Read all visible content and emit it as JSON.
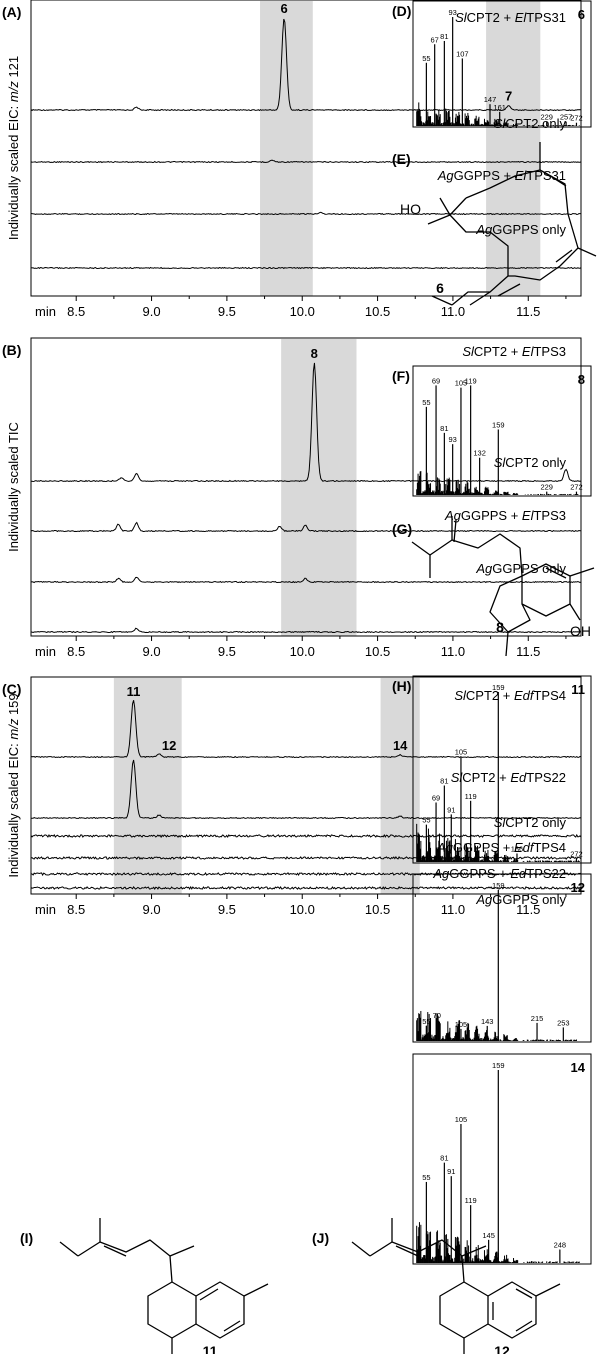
{
  "chart_data": [
    {
      "type": "line",
      "panel_label": "(A)",
      "ylabel": "Individually scaled EIC: m/z 121",
      "x_unit_label": "min",
      "xlim": [
        8.2,
        11.85
      ],
      "x_ticks": [
        "8.5",
        "9.0",
        "9.5",
        "10.0",
        "10.5",
        "11.0",
        "11.5"
      ],
      "highlight_ranges": [
        [
          9.72,
          10.07
        ],
        [
          11.22,
          11.58
        ]
      ],
      "peak_labels": [
        {
          "label": "6",
          "x": 9.88,
          "trace": 0
        },
        {
          "label": "7",
          "x": 11.37,
          "trace": 0
        }
      ],
      "series": [
        {
          "name": "SlCPT2 + ElTPS31",
          "peaks": [
            {
              "x": 9.88,
              "y": 1.0
            },
            {
              "x": 11.37,
              "y": 0.05
            },
            {
              "x": 8.9,
              "y": 0.03
            }
          ]
        },
        {
          "name": "SlCPT2 only",
          "peaks": [
            {
              "x": 9.8,
              "y": 0.02
            }
          ]
        },
        {
          "name": "AgGGPPS + ElTPS31",
          "peaks": [
            {
              "x": 10.12,
              "y": 0.02
            }
          ]
        },
        {
          "name": "AgGGPPS only",
          "peaks": []
        }
      ]
    },
    {
      "type": "line",
      "panel_label": "(B)",
      "ylabel": "Individually scaled TIC",
      "x_unit_label": "min",
      "xlim": [
        8.2,
        11.85
      ],
      "x_ticks": [
        "8.5",
        "9.0",
        "9.5",
        "10.0",
        "10.5",
        "11.0",
        "11.5"
      ],
      "highlight_ranges": [
        [
          9.86,
          10.36
        ]
      ],
      "peak_labels": [
        {
          "label": "8",
          "x": 10.08,
          "trace": 0
        }
      ],
      "series": [
        {
          "name": "SlCPT2 + ElTPS3",
          "peaks": [
            {
              "x": 10.08,
              "y": 1.0
            },
            {
              "x": 8.9,
              "y": 0.06
            },
            {
              "x": 8.8,
              "y": 0.03
            },
            {
              "x": 11.75,
              "y": 0.1
            }
          ]
        },
        {
          "name": "SlCPT2 only",
          "peaks": [
            {
              "x": 8.78,
              "y": 0.06
            },
            {
              "x": 8.9,
              "y": 0.07
            },
            {
              "x": 9.85,
              "y": 0.04
            },
            {
              "x": 10.02,
              "y": 0.05
            }
          ]
        },
        {
          "name": "AgGGPPS + ElTPS3",
          "peaks": [
            {
              "x": 8.78,
              "y": 0.03
            },
            {
              "x": 8.9,
              "y": 0.04
            },
            {
              "x": 10.02,
              "y": 0.03
            }
          ]
        },
        {
          "name": "AgGGPPS only",
          "peaks": [
            {
              "x": 8.9,
              "y": 0.03
            }
          ]
        }
      ]
    },
    {
      "type": "line",
      "panel_label": "(C)",
      "ylabel": "Individually scaled EIC: m/z 159",
      "x_unit_label": "min",
      "xlim": [
        8.2,
        11.85
      ],
      "x_ticks": [
        "8.5",
        "9.0",
        "9.5",
        "10.0",
        "10.5",
        "11.0",
        "11.5"
      ],
      "highlight_ranges": [
        [
          8.75,
          9.2
        ],
        [
          10.52,
          10.78
        ]
      ],
      "peak_labels": [
        {
          "label": "11",
          "x": 8.88,
          "trace": 0
        },
        {
          "label": "12",
          "x": 9.05,
          "trace": 0
        },
        {
          "label": "14",
          "x": 10.65,
          "trace": 0
        }
      ],
      "series": [
        {
          "name": "SlCPT2 + EdfTPS4",
          "peaks": [
            {
              "x": 8.88,
              "y": 1.0
            },
            {
              "x": 9.05,
              "y": 0.06
            },
            {
              "x": 10.65,
              "y": 0.04
            }
          ]
        },
        {
          "name": "SlCPT2 + EdTPS22",
          "peaks": [
            {
              "x": 8.88,
              "y": 1.0
            },
            {
              "x": 9.05,
              "y": 0.05
            },
            {
              "x": 10.65,
              "y": 0.03
            }
          ]
        },
        {
          "name": "SlCPT2 only",
          "peaks": []
        },
        {
          "name": "AgGGPPS + EdfTPS4",
          "peaks": []
        },
        {
          "name": "AgGGPPS + EdTPS22",
          "peaks": []
        },
        {
          "name": "AgGGPPS only",
          "peaks": []
        }
      ]
    },
    {
      "type": "bar",
      "panel_label": "(D)",
      "compound": "6",
      "xlim": [
        40,
        280
      ],
      "labeled_peaks": [
        {
          "mz": 55,
          "label": "55",
          "y": 0.58
        },
        {
          "mz": 67,
          "label": "67",
          "y": 0.75
        },
        {
          "mz": 81,
          "label": "81",
          "y": 0.78
        },
        {
          "mz": 93,
          "label": "93",
          "y": 1.0
        },
        {
          "mz": 107,
          "label": "107",
          "y": 0.62
        },
        {
          "mz": 147,
          "label": "147",
          "y": 0.2
        },
        {
          "mz": 161,
          "label": "161",
          "y": 0.13
        },
        {
          "mz": 229,
          "label": "229",
          "y": 0.04
        },
        {
          "mz": 257,
          "label": "257",
          "y": 0.04
        },
        {
          "mz": 272,
          "label": "272",
          "y": 0.03
        }
      ]
    },
    {
      "type": "bar",
      "panel_label": "(F)",
      "compound": "8",
      "xlim": [
        40,
        280
      ],
      "labeled_peaks": [
        {
          "mz": 55,
          "label": "55",
          "y": 0.78
        },
        {
          "mz": 69,
          "label": "69",
          "y": 0.97
        },
        {
          "mz": 81,
          "label": "81",
          "y": 0.55
        },
        {
          "mz": 93,
          "label": "93",
          "y": 0.45
        },
        {
          "mz": 105,
          "label": "105",
          "y": 0.95
        },
        {
          "mz": 119,
          "label": "119",
          "y": 0.97
        },
        {
          "mz": 132,
          "label": "132",
          "y": 0.33
        },
        {
          "mz": 159,
          "label": "159",
          "y": 0.58
        },
        {
          "mz": 229,
          "label": "229",
          "y": 0.03
        },
        {
          "mz": 272,
          "label": "272",
          "y": 0.03
        }
      ]
    },
    {
      "type": "bar",
      "panel_label": "(H)",
      "compound": "11",
      "xlim": [
        40,
        280
      ],
      "labeled_peaks": [
        {
          "mz": 55,
          "label": "55",
          "y": 0.22
        },
        {
          "mz": 69,
          "label": "69",
          "y": 0.35
        },
        {
          "mz": 81,
          "label": "81",
          "y": 0.45
        },
        {
          "mz": 91,
          "label": "91",
          "y": 0.28
        },
        {
          "mz": 105,
          "label": "105",
          "y": 0.62
        },
        {
          "mz": 119,
          "label": "119",
          "y": 0.36
        },
        {
          "mz": 159,
          "label": "159",
          "y": 1.0
        },
        {
          "mz": 186,
          "label": "186",
          "y": 0.05
        },
        {
          "mz": 272,
          "label": "272",
          "y": 0.02
        }
      ]
    },
    {
      "type": "bar",
      "compound": "12",
      "xlim": [
        40,
        280
      ],
      "labeled_peaks": [
        {
          "mz": 55,
          "label": "55",
          "y": 0.1
        },
        {
          "mz": 70,
          "label": "70",
          "y": 0.14
        },
        {
          "mz": 105,
          "label": "105",
          "y": 0.08
        },
        {
          "mz": 143,
          "label": "143",
          "y": 0.1
        },
        {
          "mz": 159,
          "label": "159",
          "y": 1.0
        },
        {
          "mz": 215,
          "label": "215",
          "y": 0.12
        },
        {
          "mz": 253,
          "label": "253",
          "y": 0.09
        }
      ]
    },
    {
      "type": "bar",
      "compound": "14",
      "xlim": [
        40,
        280
      ],
      "labeled_peaks": [
        {
          "mz": 55,
          "label": "55",
          "y": 0.42
        },
        {
          "mz": 81,
          "label": "81",
          "y": 0.52
        },
        {
          "mz": 91,
          "label": "91",
          "y": 0.45
        },
        {
          "mz": 105,
          "label": "105",
          "y": 0.72
        },
        {
          "mz": 119,
          "label": "119",
          "y": 0.3
        },
        {
          "mz": 145,
          "label": "145",
          "y": 0.12
        },
        {
          "mz": 159,
          "label": "159",
          "y": 1.0
        },
        {
          "mz": 248,
          "label": "248",
          "y": 0.07
        }
      ]
    }
  ],
  "structures": [
    {
      "panel_label": "(E)",
      "compound": "6",
      "group_label": "HO"
    },
    {
      "panel_label": "(G)",
      "compound": "8",
      "group_label": "OH"
    },
    {
      "panel_label": "(I)",
      "compound": "11"
    },
    {
      "panel_label": "(J)",
      "compound": "12"
    }
  ],
  "colors": {
    "highlight": "#d9d9d9",
    "trace": "#000000"
  }
}
